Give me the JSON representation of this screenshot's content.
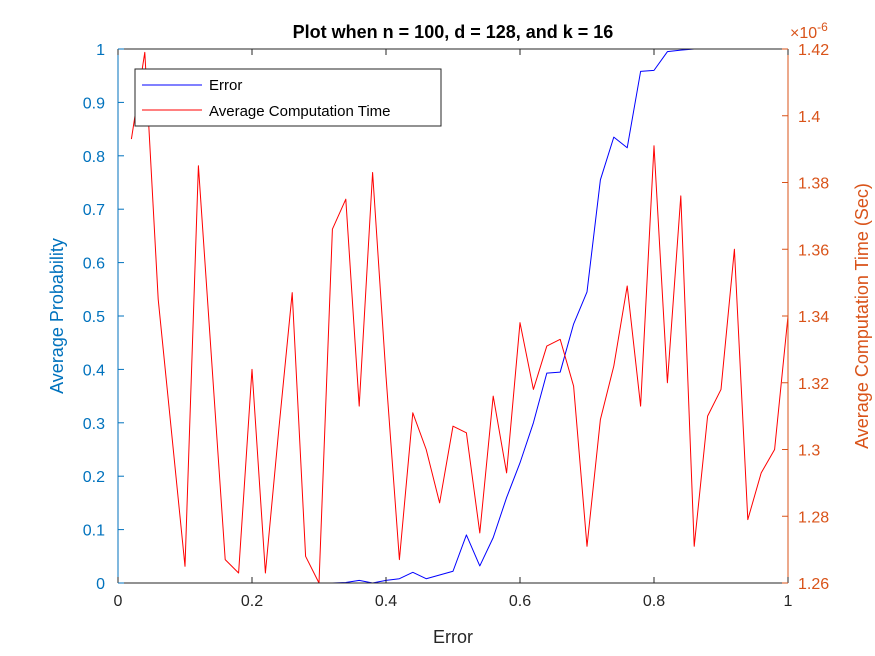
{
  "chart_data": {
    "type": "line",
    "title": "Plot when n = 100, d = 128, and k = 16",
    "xlabel": "Error",
    "ylabel_left": "Average Probability",
    "ylabel_right": "Average Computation Time (Sec)",
    "right_exponent": "×10",
    "right_exponent_power": "-6",
    "xlim": [
      0,
      1
    ],
    "ylim_left": [
      0,
      1
    ],
    "ylim_right": [
      1.26,
      1.42
    ],
    "x_ticks": [
      "0",
      "0.2",
      "0.4",
      "0.6",
      "0.8",
      "1"
    ],
    "y_left_ticks": [
      "0",
      "0.1",
      "0.2",
      "0.3",
      "0.4",
      "0.5",
      "0.6",
      "0.7",
      "0.8",
      "0.9",
      "1"
    ],
    "y_right_ticks": [
      "1.26",
      "1.28",
      "1.3",
      "1.32",
      "1.34",
      "1.36",
      "1.38",
      "1.4",
      "1.42"
    ],
    "legend_position": "top-left",
    "colors": {
      "error": "#0000FF",
      "time": "#FF0000",
      "left_axis": "#0072BD",
      "right_axis": "#D95319"
    },
    "series": [
      {
        "name": "Error",
        "axis": "left",
        "x": [
          0.3,
          0.32,
          0.34,
          0.36,
          0.38,
          0.4,
          0.42,
          0.44,
          0.46,
          0.48,
          0.5,
          0.52,
          0.54,
          0.56,
          0.58,
          0.6,
          0.62,
          0.64,
          0.66,
          0.68,
          0.7,
          0.72,
          0.74,
          0.76,
          0.78,
          0.8,
          0.82,
          0.84,
          0.86,
          0.88,
          0.9,
          0.92,
          0.94,
          0.96,
          0.98,
          1.0
        ],
        "values": [
          0,
          0,
          0.001,
          0.005,
          0,
          0.005,
          0.008,
          0.02,
          0.008,
          0.015,
          0.022,
          0.09,
          0.032,
          0.085,
          0.16,
          0.225,
          0.3,
          0.393,
          0.395,
          0.485,
          0.545,
          0.755,
          0.835,
          0.815,
          0.958,
          0.96,
          0.995,
          0.998,
          1,
          1,
          1,
          1,
          1,
          1,
          1,
          1
        ]
      },
      {
        "name": "Average Computation Time",
        "axis": "right",
        "x": [
          0.02,
          0.04,
          0.06,
          0.08,
          0.1,
          0.12,
          0.14,
          0.16,
          0.18,
          0.2,
          0.22,
          0.24,
          0.26,
          0.28,
          0.3,
          0.32,
          0.34,
          0.36,
          0.38,
          0.4,
          0.42,
          0.44,
          0.46,
          0.48,
          0.5,
          0.52,
          0.54,
          0.56,
          0.58,
          0.6,
          0.62,
          0.64,
          0.66,
          0.68,
          0.7,
          0.72,
          0.74,
          0.76,
          0.78,
          0.8,
          0.82,
          0.84,
          0.86,
          0.88,
          0.9,
          0.92,
          0.94,
          0.96,
          0.98,
          1.0
        ],
        "values": [
          1.393,
          1.419,
          1.345,
          1.305,
          1.265,
          1.385,
          1.326,
          1.267,
          1.263,
          1.324,
          1.263,
          1.306,
          1.347,
          1.268,
          1.26,
          1.366,
          1.375,
          1.313,
          1.383,
          1.322,
          1.267,
          1.311,
          1.3,
          1.284,
          1.307,
          1.305,
          1.275,
          1.316,
          1.293,
          1.338,
          1.318,
          1.331,
          1.333,
          1.319,
          1.271,
          1.309,
          1.325,
          1.349,
          1.313,
          1.391,
          1.32,
          1.376,
          1.271,
          1.31,
          1.318,
          1.36,
          1.279,
          1.293,
          1.3,
          1.34
        ]
      }
    ]
  }
}
